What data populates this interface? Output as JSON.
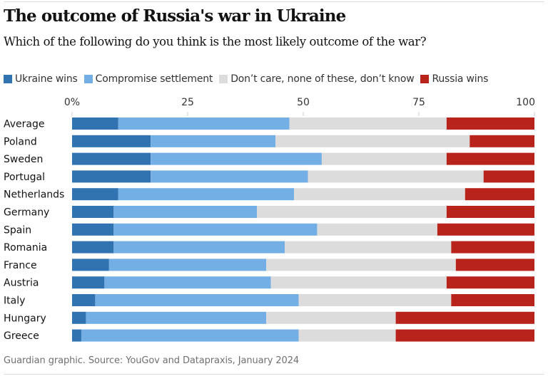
{
  "chart_data": {
    "type": "bar",
    "orientation": "horizontal",
    "stacked": true,
    "title": "The outcome of Russia's war in Ukraine",
    "subtitle": "Which of the following do you think is the most likely outcome of the war?",
    "xlabel": "",
    "ylabel": "",
    "xlim": [
      0,
      100
    ],
    "x_ticks": [
      0,
      25,
      50,
      75,
      100
    ],
    "x_tick_labels": [
      "0%",
      "25",
      "50",
      "75",
      "100"
    ],
    "grid": false,
    "legend_position": "top-left",
    "categories": [
      "Average",
      "Poland",
      "Sweden",
      "Portugal",
      "Netherlands",
      "Germany",
      "Spain",
      "Romania",
      "France",
      "Austria",
      "Italy",
      "Hungary",
      "Greece"
    ],
    "series": [
      {
        "name": "Ukraine wins",
        "color": "#3073b0",
        "values": [
          10,
          17,
          17,
          17,
          10,
          9,
          9,
          9,
          8,
          7,
          5,
          3,
          2
        ]
      },
      {
        "name": "Compromise settlement",
        "color": "#73afe5",
        "values": [
          37,
          27,
          37,
          34,
          38,
          31,
          44,
          37,
          34,
          36,
          44,
          39,
          47
        ]
      },
      {
        "name": "Don’t care, none of these, don’t know",
        "color": "#dcdcdc",
        "values": [
          34,
          42,
          27,
          38,
          37,
          41,
          26,
          36,
          41,
          38,
          33,
          28,
          21
        ]
      },
      {
        "name": "Russia wins",
        "color": "#b8241b",
        "values": [
          19,
          14,
          19,
          11,
          15,
          19,
          21,
          18,
          17,
          19,
          18,
          30,
          30
        ]
      }
    ],
    "source": "Guardian graphic. Source: YouGov and Datapraxis, January 2024"
  }
}
